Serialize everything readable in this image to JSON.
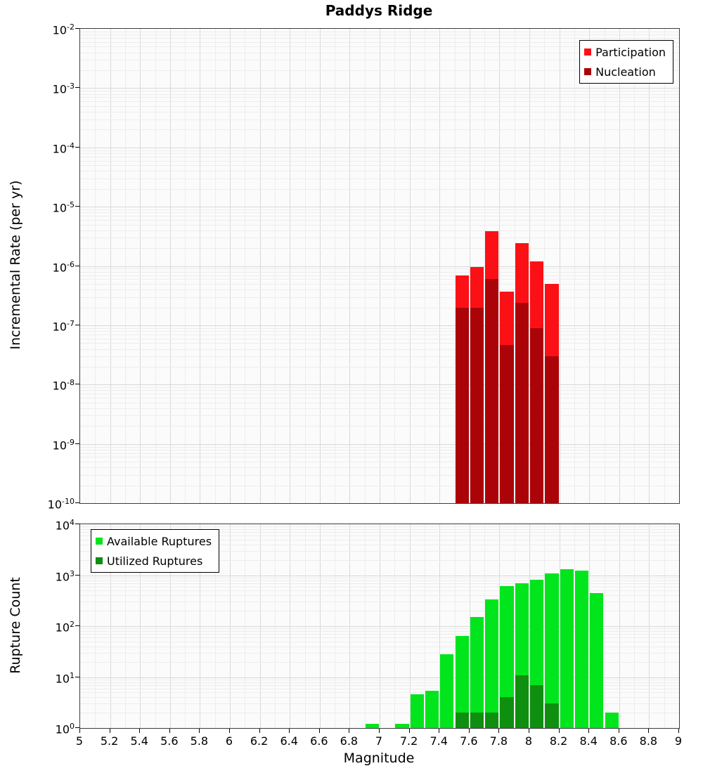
{
  "figure": {
    "title": "Paddys Ridge",
    "xlabel": "Magnitude",
    "background": "#ffffff"
  },
  "chart_data": [
    {
      "type": "bar",
      "panel": "top",
      "title": "Paddys Ridge",
      "xlabel": "",
      "ylabel": "Incremental Rate (per yr)",
      "yscale": "log",
      "xlim": [
        5,
        9
      ],
      "ylim": [
        1e-10,
        0.01
      ],
      "bin_width": 0.1,
      "grid": true,
      "legend_position": "top-right",
      "x_tick_labels": [
        "5",
        "5.2",
        "5.4",
        "5.6",
        "5.8",
        "6",
        "6.2",
        "6.4",
        "6.6",
        "6.8",
        "7",
        "7.2",
        "7.4",
        "7.6",
        "7.8",
        "8",
        "8.2",
        "8.4",
        "8.6",
        "8.8",
        "9"
      ],
      "y_tick_exponents": [
        -2,
        -3,
        -4,
        -5,
        -6,
        -7,
        -8,
        -9,
        -10
      ],
      "categories": [
        7.55,
        7.65,
        7.75,
        7.85,
        7.95,
        8.05,
        8.15
      ],
      "series": [
        {
          "name": "Participation",
          "color": "#fb1016",
          "values": [
            7e-07,
            9.5e-07,
            3.9e-06,
            3.7e-07,
            2.4e-06,
            1.2e-06,
            5e-07
          ]
        },
        {
          "name": "Nucleation",
          "color": "#aa0409",
          "values": [
            2e-07,
            2e-07,
            6e-07,
            4.6e-08,
            2.4e-07,
            9e-08,
            3e-08
          ]
        }
      ]
    },
    {
      "type": "bar",
      "panel": "bottom",
      "title": "",
      "xlabel": "Magnitude",
      "ylabel": "Rupture Count",
      "yscale": "log",
      "xlim": [
        5,
        9
      ],
      "ylim": [
        1,
        10000
      ],
      "bin_width": 0.1,
      "grid": true,
      "legend_position": "top-left",
      "x_tick_labels": [
        "5",
        "5.2",
        "5.4",
        "5.6",
        "5.8",
        "6",
        "6.2",
        "6.4",
        "6.6",
        "6.8",
        "7",
        "7.2",
        "7.4",
        "7.6",
        "7.8",
        "8",
        "8.2",
        "8.4",
        "8.6",
        "8.8",
        "9"
      ],
      "y_tick_exponents": [
        4,
        3,
        2,
        1,
        0
      ],
      "categories": [
        6.95,
        7.15,
        7.25,
        7.35,
        7.45,
        7.55,
        7.65,
        7.75,
        7.85,
        7.95,
        8.05,
        8.15,
        8.25,
        8.35,
        8.45,
        8.55
      ],
      "series": [
        {
          "name": "Available Ruptures",
          "color": "#00e51c",
          "values": [
            1.2,
            1.2,
            4.6,
            5.4,
            28,
            65,
            150,
            330,
            620,
            700,
            820,
            1100,
            1300,
            1250,
            450,
            2
          ]
        },
        {
          "name": "Utilized Ruptures",
          "color": "#0f8f0f",
          "values": [
            0,
            0,
            0,
            0,
            0,
            2,
            2,
            2,
            4,
            11,
            7,
            3,
            0,
            0,
            0,
            0
          ]
        }
      ]
    }
  ]
}
